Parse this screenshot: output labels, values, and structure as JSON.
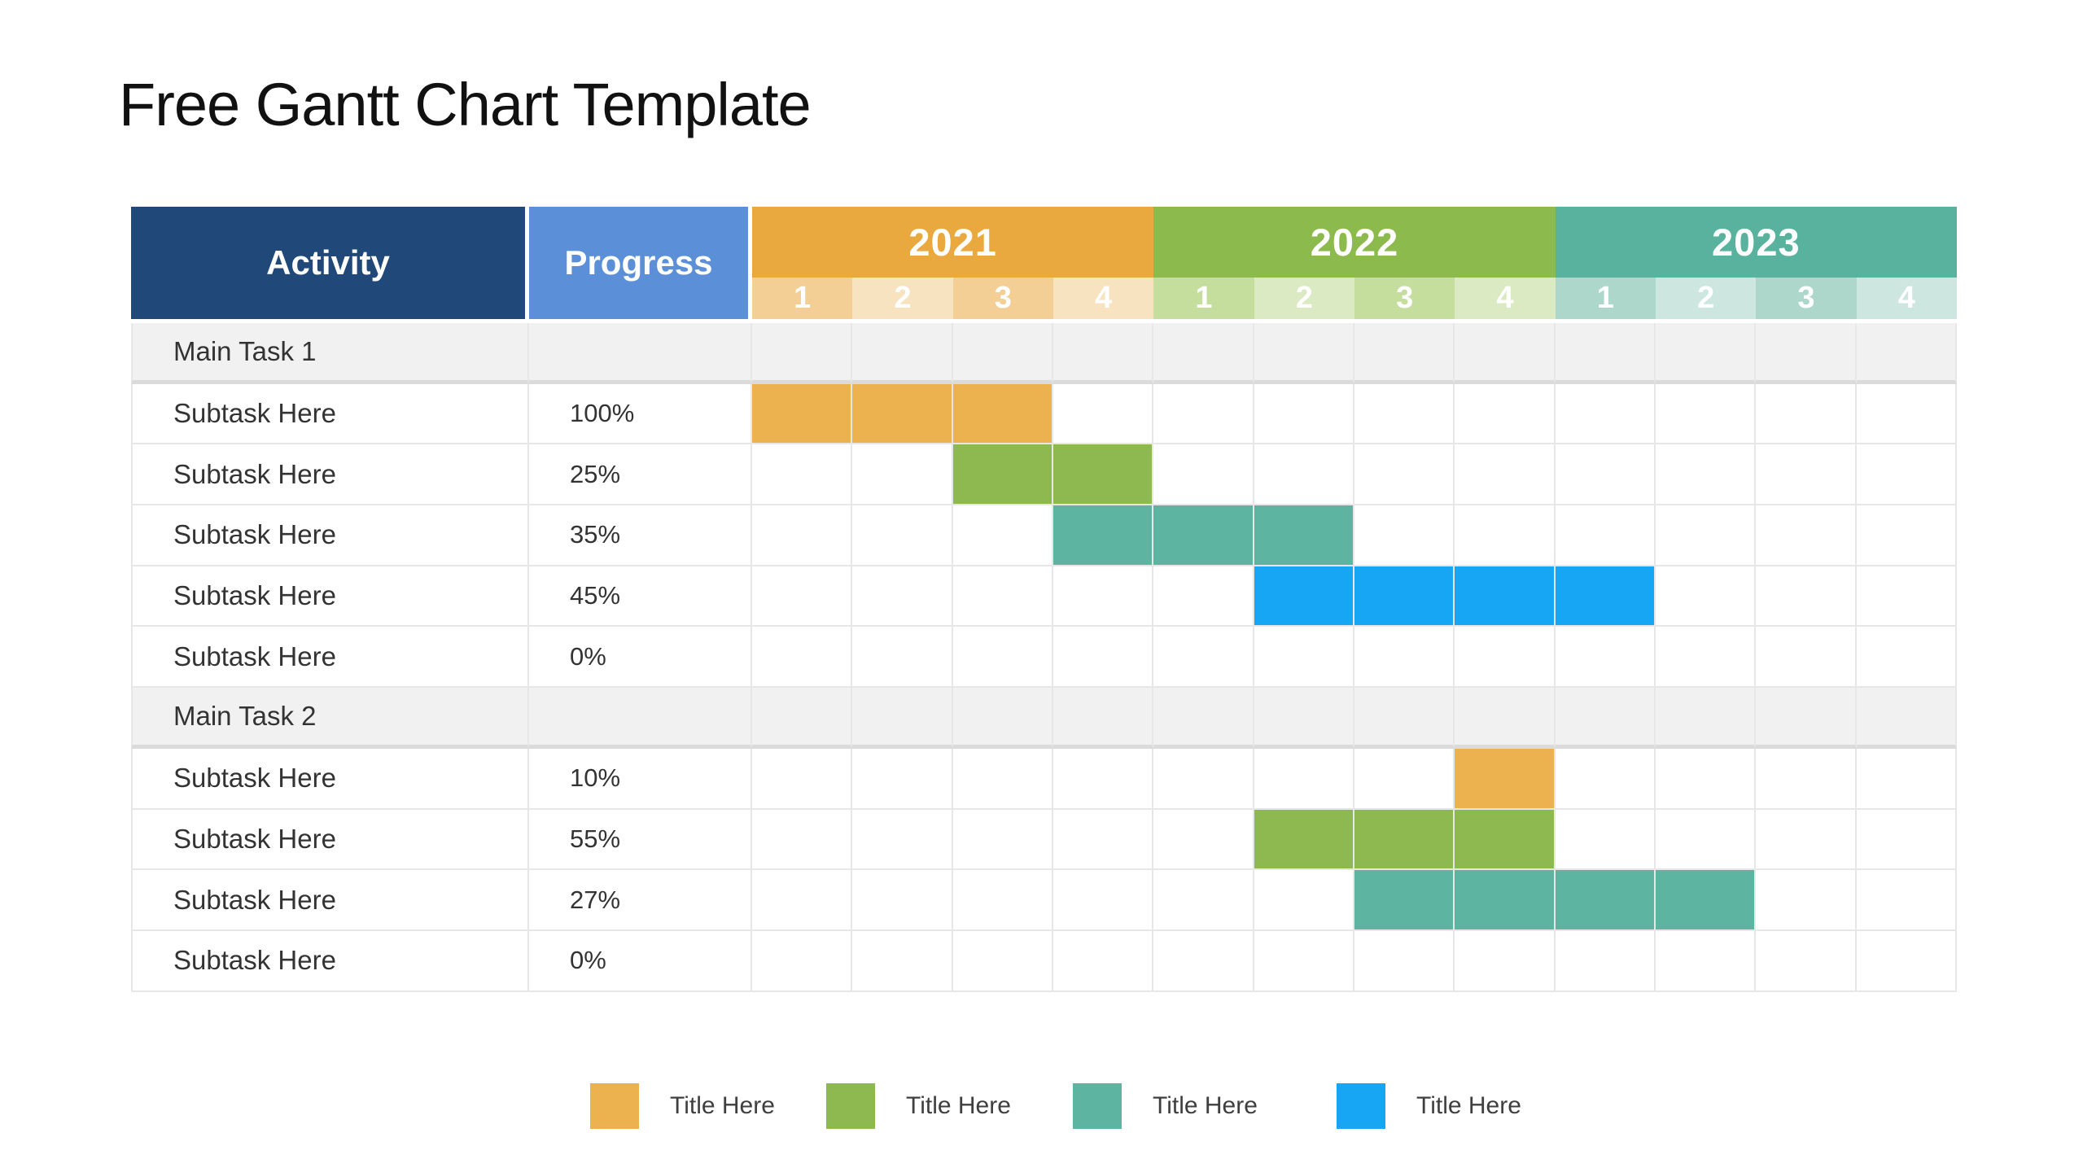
{
  "title": "Free Gantt Chart Template",
  "header": {
    "activity": "Activity",
    "progress": "Progress"
  },
  "chart_data": {
    "type": "gantt",
    "title": "Free Gantt Chart Template",
    "x_axis": {
      "years": [
        "2021",
        "2022",
        "2023"
      ],
      "quarters_per_year": 4,
      "quarter_labels": [
        "1",
        "2",
        "3",
        "4"
      ]
    },
    "columns": [
      "Activity",
      "Progress",
      "2021 Q1-Q4",
      "2022 Q1-Q4",
      "2023 Q1-Q4"
    ],
    "rows": [
      {
        "task": "Main Task 1",
        "kind": "group",
        "progress_label": "",
        "progress_pct": null,
        "start": null,
        "end": null,
        "series": null
      },
      {
        "task": "Subtask Here",
        "kind": "subtask",
        "progress_label": "100%",
        "progress_pct": 100,
        "start": "2021-Q1",
        "end": "2021-Q3",
        "series": "orange"
      },
      {
        "task": "Subtask Here",
        "kind": "subtask",
        "progress_label": "25%",
        "progress_pct": 25,
        "start": "2021-Q3",
        "end": "2021-Q4",
        "series": "green"
      },
      {
        "task": "Subtask Here",
        "kind": "subtask",
        "progress_label": "35%",
        "progress_pct": 35,
        "start": "2021-Q4",
        "end": "2022-Q2",
        "series": "teal"
      },
      {
        "task": "Subtask Here",
        "kind": "subtask",
        "progress_label": "45%",
        "progress_pct": 45,
        "start": "2022-Q2",
        "end": "2023-Q1",
        "series": "blue"
      },
      {
        "task": "Subtask Here",
        "kind": "subtask",
        "progress_label": "0%",
        "progress_pct": 0,
        "start": null,
        "end": null,
        "series": null
      },
      {
        "task": "Main Task 2",
        "kind": "group",
        "progress_label": "",
        "progress_pct": null,
        "start": null,
        "end": null,
        "series": null
      },
      {
        "task": "Subtask Here",
        "kind": "subtask",
        "progress_label": "10%",
        "progress_pct": 10,
        "start": "2022-Q4",
        "end": "2022-Q4",
        "series": "orange"
      },
      {
        "task": "Subtask Here",
        "kind": "subtask",
        "progress_label": "55%",
        "progress_pct": 55,
        "start": "2022-Q2",
        "end": "2022-Q4",
        "series": "green"
      },
      {
        "task": "Subtask Here",
        "kind": "subtask",
        "progress_label": "27%",
        "progress_pct": 27,
        "start": "2022-Q3",
        "end": "2023-Q2",
        "series": "teal"
      },
      {
        "task": "Subtask Here",
        "kind": "subtask",
        "progress_label": "0%",
        "progress_pct": 0,
        "start": null,
        "end": null,
        "series": null
      }
    ],
    "legend_position": "bottom"
  },
  "legend": [
    {
      "label": "Title Here",
      "color_key": "orange"
    },
    {
      "label": "Title Here",
      "color_key": "green"
    },
    {
      "label": "Title Here",
      "color_key": "teal"
    },
    {
      "label": "Title Here",
      "color_key": "blue"
    }
  ],
  "colors": {
    "activity_header_bg": "#20497A",
    "progress_header_bg": "#5B8FD8",
    "year2021_bg": "#E9A93F",
    "year2021_tint_a": "#F3CF95",
    "year2021_tint_b": "#F8E3C1",
    "year2022_bg": "#8CBA4D",
    "year2022_tint_a": "#C5DE9E",
    "year2022_tint_b": "#DBEAC3",
    "year2023_bg": "#58B29D",
    "year2023_tint_a": "#ACD7CA",
    "year2023_tint_b": "#CDE7E0",
    "orange": "#ECB250",
    "green": "#8DB950",
    "teal": "#5CB4A1",
    "blue": "#16A6F3",
    "group_row_bg": "#F1F1F2",
    "group_divider": "#DBDBDB",
    "grid_line": "#E7E7E7",
    "body_text": "#333333",
    "legend_text": "#3F3F3F"
  }
}
